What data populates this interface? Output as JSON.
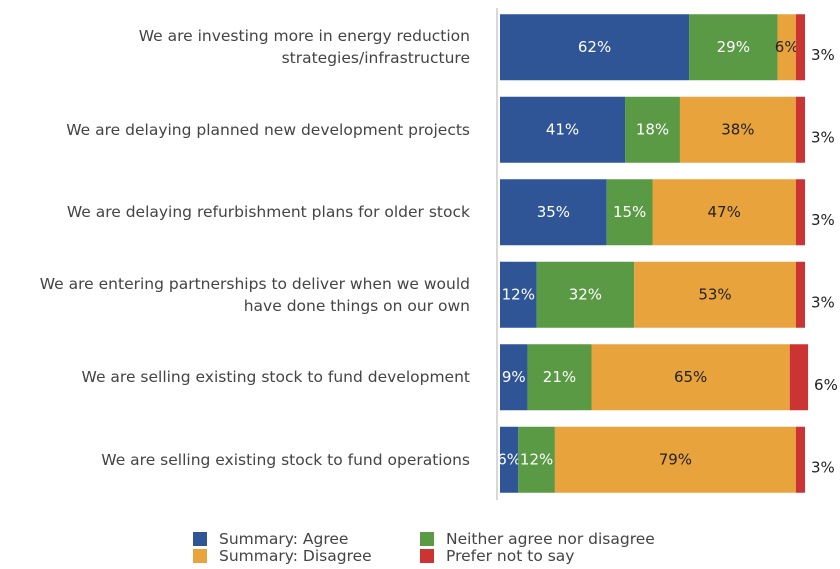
{
  "chart_data": {
    "type": "stacked_bar_horizontal",
    "categories": [
      "We are investing more in energy reduction strategies/infrastructure",
      "We are delaying planned new development projects",
      "We are delaying refurbishment plans for older stock",
      "We are entering partnerships to deliver when we would have done things on our own",
      "We are selling existing stock to fund development",
      "We are selling existing stock to fund operations"
    ],
    "series": [
      {
        "name": "Summary: Agree",
        "color": "#2f5597",
        "values": [
          62,
          41,
          35,
          12,
          9,
          6
        ],
        "value_labels": [
          "62%",
          "41%",
          "35%",
          "12%",
          "9%",
          "6%"
        ]
      },
      {
        "name": "Neither agree nor disagree",
        "color": "#5a9a45",
        "values": [
          29,
          18,
          15,
          32,
          21,
          12
        ],
        "value_labels": [
          "29%",
          "18%",
          "15%",
          "32%",
          "21%",
          "12%"
        ]
      },
      {
        "name": "Summary: Disagree",
        "color": "#e8a33d",
        "values": [
          6,
          38,
          47,
          53,
          65,
          79
        ],
        "value_labels": [
          "6%",
          "38%",
          "47%",
          "53%",
          "65%",
          "79%"
        ]
      },
      {
        "name": "Prefer not to say",
        "color": "#cc3333",
        "values": [
          3,
          3,
          3,
          3,
          6,
          3
        ],
        "value_labels": [
          "3%",
          "3%",
          "3%",
          "3%",
          "6%",
          "3%"
        ]
      }
    ],
    "xlim": [
      0,
      100
    ]
  }
}
